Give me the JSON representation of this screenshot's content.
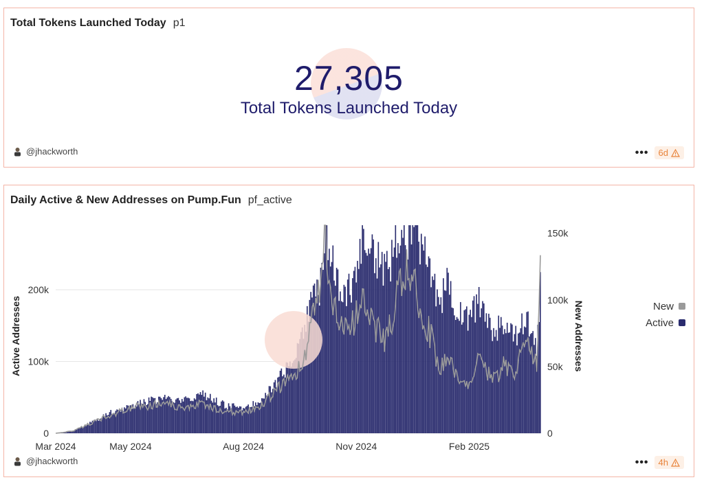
{
  "panel1": {
    "title": "Total Tokens Launched Today",
    "subtitle": "p1",
    "value": "27,305",
    "label": "Total Tokens Launched Today",
    "author": "@jhackworth",
    "menu": "•••",
    "age": "6d",
    "warning_icon": "warning-icon"
  },
  "panel2": {
    "title": "Daily Active & New Addresses on Pump.Fun",
    "subtitle": "pf_active",
    "author": "@jhackworth",
    "menu": "•••",
    "age": "4h",
    "warning_icon": "warning-icon"
  },
  "colors": {
    "active": "#2a2c6e",
    "new": "#9a9a9a",
    "age_badge": "#e8833a",
    "border": "#f4b4a6"
  },
  "chart_data": {
    "type": "bar",
    "x_tick_labels": [
      "Mar 2024",
      "May 2024",
      "Aug 2024",
      "Nov 2024",
      "Feb 2025"
    ],
    "x_tick_index": [
      0,
      61,
      153,
      245,
      337
    ],
    "ylabel_left": "Active Addresses",
    "ylabel_right": "New Addresses",
    "ylim_left": [
      0,
      290000
    ],
    "ylim_right": [
      0,
      156000
    ],
    "y_ticks_left": [
      {
        "value": 0,
        "label": "0"
      },
      {
        "value": 100000,
        "label": "100k"
      },
      {
        "value": 200000,
        "label": "200k"
      }
    ],
    "y_ticks_right": [
      {
        "value": 0,
        "label": "0"
      },
      {
        "value": 50000,
        "label": "50k"
      },
      {
        "value": 100000,
        "label": "100k"
      },
      {
        "value": 150000,
        "label": "150k"
      }
    ],
    "legend": [
      {
        "name": "New",
        "color": "#9a9a9a"
      },
      {
        "name": "Active",
        "color": "#2a2c6e"
      }
    ],
    "legend_position": "right",
    "active_anchors": [
      [
        0,
        0
      ],
      [
        5,
        1000
      ],
      [
        15,
        4000
      ],
      [
        25,
        12000
      ],
      [
        35,
        20000
      ],
      [
        45,
        30000
      ],
      [
        55,
        34000
      ],
      [
        61,
        38000
      ],
      [
        70,
        42000
      ],
      [
        80,
        46000
      ],
      [
        90,
        48000
      ],
      [
        100,
        44000
      ],
      [
        110,
        48000
      ],
      [
        120,
        55000
      ],
      [
        130,
        45000
      ],
      [
        140,
        38000
      ],
      [
        150,
        36000
      ],
      [
        158,
        38000
      ],
      [
        165,
        45000
      ],
      [
        172,
        58000
      ],
      [
        180,
        70000
      ],
      [
        190,
        95000
      ],
      [
        200,
        130000
      ],
      [
        208,
        180000
      ],
      [
        215,
        200000
      ],
      [
        220,
        290000
      ],
      [
        225,
        240000
      ],
      [
        232,
        205000
      ],
      [
        240,
        200000
      ],
      [
        245,
        210000
      ],
      [
        250,
        260000
      ],
      [
        257,
        260000
      ],
      [
        262,
        240000
      ],
      [
        270,
        225000
      ],
      [
        278,
        270000
      ],
      [
        285,
        265000
      ],
      [
        292,
        290000
      ],
      [
        298,
        260000
      ],
      [
        305,
        235000
      ],
      [
        312,
        180000
      ],
      [
        320,
        210000
      ],
      [
        328,
        170000
      ],
      [
        337,
        160000
      ],
      [
        345,
        185000
      ],
      [
        352,
        150000
      ],
      [
        358,
        145000
      ],
      [
        365,
        155000
      ],
      [
        370,
        140000
      ],
      [
        375,
        135000
      ],
      [
        382,
        160000
      ],
      [
        388,
        150000
      ],
      [
        392,
        120000
      ],
      [
        395,
        200000
      ]
    ],
    "new_anchors": [
      [
        0,
        0
      ],
      [
        5,
        500
      ],
      [
        15,
        2000
      ],
      [
        25,
        6000
      ],
      [
        35,
        10000
      ],
      [
        45,
        14000
      ],
      [
        55,
        17000
      ],
      [
        61,
        19000
      ],
      [
        70,
        20000
      ],
      [
        80,
        21000
      ],
      [
        90,
        22000
      ],
      [
        100,
        20000
      ],
      [
        110,
        21000
      ],
      [
        120,
        22000
      ],
      [
        130,
        18000
      ],
      [
        140,
        16000
      ],
      [
        150,
        16000
      ],
      [
        158,
        17000
      ],
      [
        165,
        20000
      ],
      [
        172,
        25000
      ],
      [
        180,
        33000
      ],
      [
        190,
        40000
      ],
      [
        200,
        50000
      ],
      [
        208,
        80000
      ],
      [
        215,
        110000
      ],
      [
        220,
        150000
      ],
      [
        225,
        95000
      ],
      [
        232,
        85000
      ],
      [
        240,
        80000
      ],
      [
        245,
        90000
      ],
      [
        250,
        100000
      ],
      [
        257,
        85000
      ],
      [
        262,
        80000
      ],
      [
        270,
        70000
      ],
      [
        278,
        100000
      ],
      [
        285,
        125000
      ],
      [
        292,
        115000
      ],
      [
        298,
        90000
      ],
      [
        305,
        75000
      ],
      [
        312,
        50000
      ],
      [
        320,
        60000
      ],
      [
        328,
        40000
      ],
      [
        337,
        35000
      ],
      [
        345,
        55000
      ],
      [
        352,
        45000
      ],
      [
        358,
        40000
      ],
      [
        365,
        50000
      ],
      [
        370,
        45000
      ],
      [
        375,
        42000
      ],
      [
        382,
        75000
      ],
      [
        388,
        60000
      ],
      [
        392,
        50000
      ],
      [
        395,
        135000
      ]
    ]
  }
}
